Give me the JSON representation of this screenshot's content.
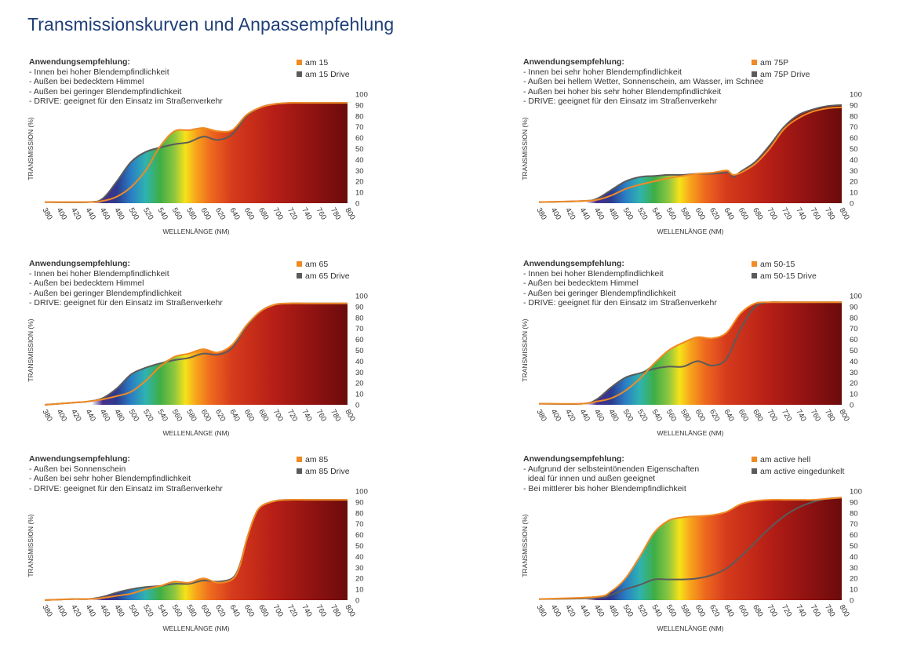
{
  "title": "Transmissionskurven und Anpassempfehlung",
  "colors": {
    "title": "#1f3f78",
    "series_light": "#f08a24",
    "series_dark": "#5b5b5b"
  },
  "spectrum_colors": [
    [
      380,
      "#ffffff"
    ],
    [
      445,
      "#ffffff"
    ],
    [
      460,
      "#4a2f8a"
    ],
    [
      480,
      "#2d3a8e"
    ],
    [
      500,
      "#2a7fc4"
    ],
    [
      520,
      "#2fb3b0"
    ],
    [
      540,
      "#3fae45"
    ],
    [
      560,
      "#8ec63f"
    ],
    [
      575,
      "#f6e21a"
    ],
    [
      590,
      "#f7a41b"
    ],
    [
      610,
      "#ee6a1f"
    ],
    [
      640,
      "#d63b1c"
    ],
    [
      700,
      "#b51e16"
    ],
    [
      760,
      "#8a1111"
    ],
    [
      800,
      "#6b0b0b"
    ]
  ],
  "charts": [
    {
      "recommendation_heading": "Anwendungsempfehlung:",
      "recommendation_lines": [
        "- Innen bei hoher Blendempfindlichkeit",
        "- Außen bei bedecktem Himmel",
        "- Außen bei geringer Blendempfindlichkeit",
        "- DRIVE: geeignet für den Einsatz im Straßenverkehr"
      ],
      "chart_data": {
        "type": "area",
        "xlabel": "WELLENLÄNGE (NM)",
        "ylabel": "TRANSMISSION (%)",
        "xlim": [
          380,
          800
        ],
        "ylim": [
          0,
          100
        ],
        "x_ticks": [
          380,
          400,
          420,
          440,
          460,
          480,
          500,
          520,
          540,
          560,
          580,
          600,
          620,
          640,
          660,
          680,
          700,
          720,
          740,
          760,
          780,
          800
        ],
        "y_ticks": [
          0,
          10,
          20,
          30,
          40,
          50,
          60,
          70,
          80,
          90,
          100
        ],
        "x": [
          380,
          440,
          460,
          480,
          500,
          520,
          540,
          560,
          580,
          600,
          620,
          640,
          660,
          680,
          700,
          720,
          740,
          760,
          780,
          800
        ],
        "series": [
          {
            "name": "am 15",
            "color": "#f08a24",
            "values": [
              1,
              1,
              2,
              6,
              15,
              30,
              52,
              66,
              67,
              69,
              66,
              67,
              81,
              88,
              91,
              92,
              92,
              92,
              92,
              92
            ]
          },
          {
            "name": "am 15 Drive",
            "color": "#5b5b5b",
            "values": [
              1,
              1,
              4,
              20,
              38,
              47,
              51,
              54,
              56,
              61,
              58,
              63,
              80,
              88,
              91,
              92,
              92,
              92,
              92,
              92
            ]
          }
        ]
      }
    },
    {
      "recommendation_heading": "Anwendungsempfehlung:",
      "recommendation_lines": [
        "- Innen bei sehr hoher Blendempfindlichkeit",
        "- Außen bei hellem Wetter, Sonnenschein, am Wasser, im Schnee",
        "- Außen bei hoher bis sehr hoher Blendempfindlichkeit",
        "- DRIVE: geeignet für den Einsatz im Straßenverkehr"
      ],
      "chart_data": {
        "type": "area",
        "xlabel": "WELLENLÄNGE (NM)",
        "ylabel": "TRANSMISSION (%)",
        "xlim": [
          380,
          800
        ],
        "ylim": [
          0,
          100
        ],
        "x_ticks": [
          380,
          400,
          420,
          440,
          460,
          480,
          500,
          520,
          540,
          560,
          580,
          600,
          620,
          640,
          660,
          680,
          700,
          720,
          740,
          760,
          780,
          800
        ],
        "y_ticks": [
          0,
          10,
          20,
          30,
          40,
          50,
          60,
          70,
          80,
          90,
          100
        ],
        "x": [
          380,
          440,
          460,
          480,
          500,
          520,
          540,
          560,
          580,
          600,
          620,
          640,
          645,
          650,
          660,
          680,
          700,
          720,
          740,
          760,
          780,
          800
        ],
        "series": [
          {
            "name": "am 75P",
            "color": "#f08a24",
            "values": [
              1,
              2,
              3,
              7,
              13,
              17,
              20,
              23,
              25,
              27,
              28,
              30,
              28,
              26,
              28,
              36,
              50,
              68,
              78,
              84,
              87,
              88
            ]
          },
          {
            "name": "am 75P Drive",
            "color": "#5b5b5b",
            "values": [
              1,
              2,
              4,
              12,
              20,
              24,
              25,
              26,
              26,
              27,
              27,
              28,
              28,
              24,
              29,
              38,
              53,
              70,
              81,
              86,
              89,
              90
            ]
          }
        ]
      }
    },
    {
      "recommendation_heading": "Anwendungsempfehlung:",
      "recommendation_lines": [
        "- Innen bei hoher Blendempfindlichkeit",
        "- Außen bei bedecktem Himmel",
        "- Außen bei geringer Blendempfindlichkeit",
        "- DRIVE: geeignet für den Einsatz im Straßenverkehr"
      ],
      "chart_data": {
        "type": "area",
        "xlabel": "WELLENLÄNGE (NM)",
        "ylabel": "TRANSMISSION (%)",
        "xlim": [
          380,
          800
        ],
        "ylim": [
          0,
          100
        ],
        "x_ticks": [
          380,
          400,
          420,
          440,
          460,
          480,
          500,
          520,
          540,
          560,
          580,
          600,
          620,
          640,
          660,
          680,
          700,
          720,
          740,
          760,
          780,
          800
        ],
        "y_ticks": [
          0,
          10,
          20,
          30,
          40,
          50,
          60,
          70,
          80,
          90,
          100
        ],
        "x": [
          380,
          400,
          420,
          440,
          460,
          480,
          500,
          520,
          540,
          560,
          580,
          600,
          620,
          640,
          660,
          680,
          700,
          720,
          740,
          760,
          780,
          800
        ],
        "series": [
          {
            "name": "am 65",
            "color": "#f08a24",
            "values": [
              0,
              1,
              2,
              3,
              5,
              8,
              12,
              22,
              35,
              44,
              47,
              51,
              48,
              55,
              73,
              86,
              92,
              93,
              93,
              93,
              93,
              93
            ]
          },
          {
            "name": "am 65 Drive",
            "color": "#5b5b5b",
            "values": [
              0,
              1,
              2,
              3,
              6,
              15,
              28,
              34,
              38,
              41,
              43,
              47,
              46,
              52,
              72,
              86,
              92,
              93,
              93,
              93,
              93,
              93
            ]
          }
        ]
      }
    },
    {
      "recommendation_heading": "Anwendungsempfehlung:",
      "recommendation_lines": [
        "- Innen bei hoher Blendempfindlichkeit",
        "- Außen bei bedecktem Himmel",
        "- Außen bei geringer Blendempfindlichkeit",
        "- DRIVE: geeignet für den Einsatz im Straßenverkehr"
      ],
      "chart_data": {
        "type": "area",
        "xlabel": "WELLENLÄNGE (NM)",
        "ylabel": "TRANSMISSION (%)",
        "xlim": [
          380,
          800
        ],
        "ylim": [
          0,
          100
        ],
        "x_ticks": [
          380,
          400,
          420,
          440,
          460,
          480,
          500,
          520,
          540,
          560,
          580,
          600,
          620,
          640,
          660,
          680,
          700,
          720,
          740,
          760,
          780,
          800
        ],
        "y_ticks": [
          0,
          10,
          20,
          30,
          40,
          50,
          60,
          70,
          80,
          90,
          100
        ],
        "x": [
          380,
          440,
          460,
          480,
          500,
          520,
          540,
          560,
          580,
          600,
          620,
          640,
          660,
          680,
          700,
          720,
          740,
          760,
          780,
          800
        ],
        "series": [
          {
            "name": "am 50-15",
            "color": "#f08a24",
            "values": [
              1,
              1,
              3,
              6,
              13,
              24,
              38,
              50,
              57,
              62,
              61,
              66,
              84,
              93,
              94,
              94,
              94,
              94,
              94,
              94
            ]
          },
          {
            "name": "am 50-15 Drive",
            "color": "#5b5b5b",
            "values": [
              1,
              1,
              5,
              16,
              25,
              29,
              33,
              35,
              35,
              40,
              36,
              42,
              70,
              90,
              94,
              94,
              94,
              94,
              94,
              94
            ]
          }
        ]
      }
    },
    {
      "recommendation_heading": "Anwendungsempfehlung:",
      "recommendation_lines": [
        "- Außen bei Sonnenschein",
        "- Außen bei sehr hoher Blendempfindlichkeit",
        "- DRIVE: geeignet für den Einsatz im Straßenverkehr"
      ],
      "chart_data": {
        "type": "area",
        "xlabel": "WELLENLÄNGE (NM)",
        "ylabel": "TRANSMISSION (%)",
        "xlim": [
          380,
          800
        ],
        "ylim": [
          0,
          100
        ],
        "x_ticks": [
          380,
          400,
          420,
          440,
          460,
          480,
          500,
          520,
          540,
          560,
          580,
          600,
          620,
          640,
          660,
          680,
          700,
          720,
          740,
          760,
          780,
          800
        ],
        "y_ticks": [
          0,
          10,
          20,
          30,
          40,
          50,
          60,
          70,
          80,
          90,
          100
        ],
        "x": [
          380,
          420,
          440,
          460,
          480,
          500,
          520,
          540,
          560,
          580,
          600,
          620,
          640,
          650,
          660,
          670,
          680,
          700,
          720,
          740,
          760,
          780,
          800
        ],
        "series": [
          {
            "name": "am 85",
            "color": "#f08a24",
            "values": [
              0,
              1,
              1,
              2,
              4,
              6,
              10,
              13,
              17,
              16,
              20,
              16,
              19,
              30,
              55,
              75,
              86,
              91,
              92,
              92,
              92,
              92,
              92
            ]
          },
          {
            "name": "am 85 Drive",
            "color": "#5b5b5b",
            "values": [
              0,
              1,
              1,
              3,
              7,
              10,
              12,
              13,
              15,
              15,
              18,
              17,
              20,
              31,
              55,
              75,
              86,
              91,
              92,
              92,
              92,
              92,
              92
            ]
          }
        ]
      }
    },
    {
      "recommendation_heading": "Anwendungsempfehlung:",
      "recommendation_lines": [
        "- Aufgrund der selbsteintönenden Eigenschaften",
        "  ideal für innen und außen geeignet",
        "- Bei mittlerer bis hoher Blendempfindlichkeit"
      ],
      "chart_data": {
        "type": "area",
        "xlabel": "WELLENLÄNGE (NM)",
        "ylabel": "TRANSMISSION (%)",
        "xlim": [
          380,
          800
        ],
        "ylim": [
          0,
          100
        ],
        "x_ticks": [
          380,
          400,
          420,
          440,
          460,
          480,
          500,
          520,
          540,
          560,
          580,
          600,
          620,
          640,
          660,
          680,
          700,
          720,
          740,
          760,
          780,
          800
        ],
        "y_ticks": [
          0,
          10,
          20,
          30,
          40,
          50,
          60,
          70,
          80,
          90,
          100
        ],
        "x": [
          380,
          460,
          480,
          500,
          520,
          540,
          560,
          580,
          600,
          620,
          640,
          660,
          680,
          700,
          720,
          740,
          760,
          780,
          800
        ],
        "series": [
          {
            "name": "am active hell",
            "color": "#f08a24",
            "values": [
              1,
              3,
              8,
              20,
              40,
              62,
              73,
              76,
              77,
              78,
              81,
              88,
              91,
              92,
              92,
              92,
              92,
              93,
              94
            ]
          },
          {
            "name": "am active eingedunkelt",
            "color": "#5b5b5b",
            "values": [
              1,
              2,
              5,
              10,
              14,
              19,
              19,
              19,
              20,
              23,
              29,
              40,
              53,
              66,
              77,
              85,
              90,
              93,
              94
            ]
          }
        ]
      }
    }
  ]
}
